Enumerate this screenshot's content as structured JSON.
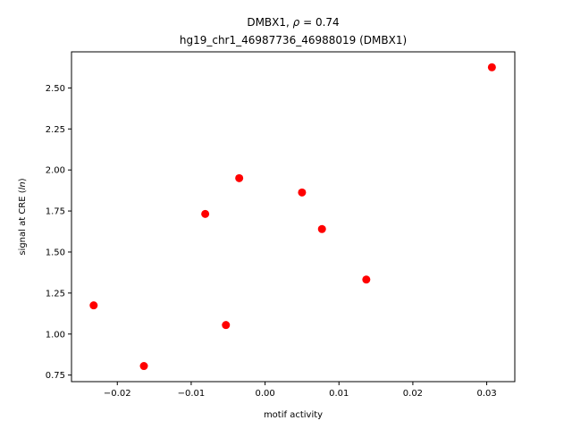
{
  "chart_data": {
    "type": "scatter",
    "title_line1_prefix": "DMBX1, ",
    "title_rho_symbol": "ρ",
    "title_rho_value": " = 0.74",
    "title_line2": "hg19_chr1_46987736_46988019 (DMBX1)",
    "xlabel": "motif activity",
    "ylabel_prefix": "signal at CRE (",
    "ylabel_italic": "ln",
    "ylabel_suffix": ")",
    "xlim": [
      -0.0262,
      0.0338
    ],
    "ylim": [
      0.71,
      2.72
    ],
    "xticks": [
      -0.02,
      -0.01,
      0.0,
      0.01,
      0.02,
      0.03
    ],
    "xtick_labels": [
      "−0.02",
      "−0.01",
      "0.00",
      "0.01",
      "0.02",
      "0.03"
    ],
    "yticks": [
      0.75,
      1.0,
      1.25,
      1.5,
      1.75,
      2.0,
      2.25,
      2.5
    ],
    "ytick_labels": [
      "0.75",
      "1.00",
      "1.25",
      "1.50",
      "1.75",
      "2.00",
      "2.25",
      "2.50"
    ],
    "grid": false,
    "marker_color": "#ff0000",
    "points": [
      {
        "x": -0.0232,
        "y": 1.175
      },
      {
        "x": -0.0164,
        "y": 0.805
      },
      {
        "x": -0.0081,
        "y": 1.732
      },
      {
        "x": -0.0053,
        "y": 1.055
      },
      {
        "x": -0.0035,
        "y": 1.95
      },
      {
        "x": 0.005,
        "y": 1.863
      },
      {
        "x": 0.0077,
        "y": 1.64
      },
      {
        "x": 0.0137,
        "y": 1.332
      },
      {
        "x": 0.0307,
        "y": 2.626
      }
    ]
  }
}
